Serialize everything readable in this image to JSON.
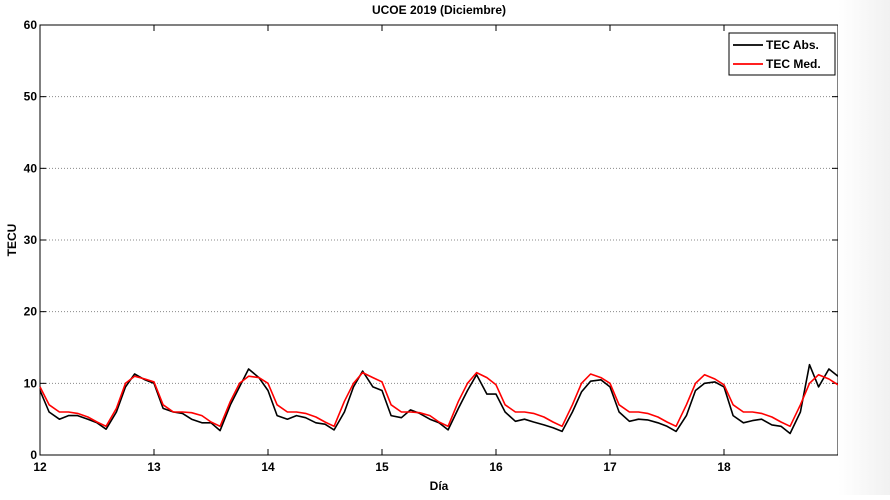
{
  "chart_data": {
    "type": "line",
    "title": "UCOE 2019 (Diciembre)",
    "xlabel": "Día",
    "ylabel": "TECU",
    "xlim": [
      12,
      19
    ],
    "ylim": [
      0,
      60
    ],
    "xticks": [
      12,
      13,
      14,
      15,
      16,
      17,
      18
    ],
    "yticks": [
      0,
      10,
      20,
      30,
      40,
      50,
      60
    ],
    "grid": "horizontal-dotted",
    "legend_position": "top-right",
    "series": [
      {
        "name": "TEC Abs.",
        "color": "#000000",
        "x": [
          12.0,
          12.08,
          12.17,
          12.25,
          12.33,
          12.42,
          12.5,
          12.58,
          12.67,
          12.75,
          12.83,
          12.92,
          13.0,
          13.08,
          13.17,
          13.25,
          13.33,
          13.42,
          13.5,
          13.58,
          13.67,
          13.75,
          13.83,
          13.92,
          14.0,
          14.08,
          14.17,
          14.25,
          14.33,
          14.42,
          14.5,
          14.58,
          14.67,
          14.75,
          14.83,
          14.92,
          15.0,
          15.08,
          15.17,
          15.25,
          15.33,
          15.42,
          15.5,
          15.58,
          15.67,
          15.75,
          15.83,
          15.92,
          16.0,
          16.08,
          16.17,
          16.25,
          16.33,
          16.42,
          16.5,
          16.58,
          16.67,
          16.75,
          16.83,
          16.92,
          17.0,
          17.08,
          17.17,
          17.25,
          17.33,
          17.42,
          17.5,
          17.58,
          17.67,
          17.75,
          17.83,
          17.92,
          18.0,
          18.08,
          18.17,
          18.25,
          18.33,
          18.42,
          18.5,
          18.58,
          18.67,
          18.75,
          18.83,
          18.92,
          19.0
        ],
        "y": [
          9.0,
          6.0,
          5.0,
          5.5,
          5.5,
          5.0,
          4.5,
          3.6,
          6.0,
          9.5,
          11.3,
          10.5,
          10.0,
          6.5,
          6.0,
          5.8,
          5.0,
          4.5,
          4.5,
          3.4,
          7.0,
          9.5,
          12.0,
          10.8,
          9.0,
          5.5,
          5.0,
          5.5,
          5.2,
          4.5,
          4.3,
          3.5,
          6.0,
          9.5,
          11.7,
          9.5,
          9.0,
          5.5,
          5.2,
          6.3,
          5.8,
          5.0,
          4.5,
          3.5,
          6.5,
          9.0,
          11.2,
          8.5,
          8.5,
          6.0,
          4.7,
          5.0,
          4.6,
          4.2,
          3.8,
          3.3,
          6.0,
          8.8,
          10.3,
          10.5,
          9.5,
          6.0,
          4.7,
          5.0,
          4.9,
          4.5,
          4.0,
          3.3,
          5.5,
          9.0,
          10.0,
          10.2,
          9.5,
          5.5,
          4.5,
          4.8,
          5.0,
          4.2,
          4.0,
          3.0,
          6.0,
          12.6,
          9.5,
          12.0,
          11.0
        ]
      },
      {
        "name": "TEC Med.",
        "color": "#ff0000",
        "x": [
          12.0,
          12.08,
          12.17,
          12.25,
          12.33,
          12.42,
          12.5,
          12.58,
          12.67,
          12.75,
          12.83,
          12.92,
          13.0,
          13.08,
          13.17,
          13.25,
          13.33,
          13.42,
          13.5,
          13.58,
          13.67,
          13.75,
          13.83,
          13.92,
          14.0,
          14.08,
          14.17,
          14.25,
          14.33,
          14.42,
          14.5,
          14.58,
          14.67,
          14.75,
          14.83,
          14.92,
          15.0,
          15.08,
          15.17,
          15.25,
          15.33,
          15.42,
          15.5,
          15.58,
          15.67,
          15.75,
          15.83,
          15.92,
          16.0,
          16.08,
          16.17,
          16.25,
          16.33,
          16.42,
          16.5,
          16.58,
          16.67,
          16.75,
          16.83,
          16.92,
          17.0,
          17.08,
          17.17,
          17.25,
          17.33,
          17.42,
          17.5,
          17.58,
          17.67,
          17.75,
          17.83,
          17.92,
          18.0,
          18.08,
          18.17,
          18.25,
          18.33,
          18.42,
          18.5,
          18.58,
          18.67,
          18.75,
          18.83,
          18.92,
          19.0
        ],
        "y": [
          9.5,
          7.0,
          6.0,
          6.0,
          5.8,
          5.3,
          4.6,
          4.0,
          6.5,
          10.0,
          11.0,
          10.6,
          10.2,
          7.0,
          6.0,
          6.0,
          5.9,
          5.5,
          4.6,
          4.0,
          7.5,
          10.0,
          11.0,
          10.8,
          10.0,
          7.0,
          6.0,
          6.0,
          5.8,
          5.3,
          4.6,
          4.0,
          7.5,
          10.0,
          11.5,
          10.8,
          10.2,
          7.0,
          6.0,
          6.0,
          5.9,
          5.5,
          4.6,
          4.0,
          7.5,
          10.0,
          11.5,
          10.8,
          9.8,
          7.0,
          6.0,
          6.0,
          5.8,
          5.3,
          4.6,
          4.0,
          7.0,
          10.0,
          11.3,
          10.8,
          10.0,
          7.0,
          6.0,
          6.0,
          5.8,
          5.3,
          4.6,
          4.0,
          7.0,
          10.0,
          11.2,
          10.6,
          9.8,
          7.0,
          6.0,
          6.0,
          5.8,
          5.3,
          4.6,
          4.0,
          7.0,
          10.0,
          11.2,
          10.6,
          9.8
        ]
      }
    ]
  }
}
